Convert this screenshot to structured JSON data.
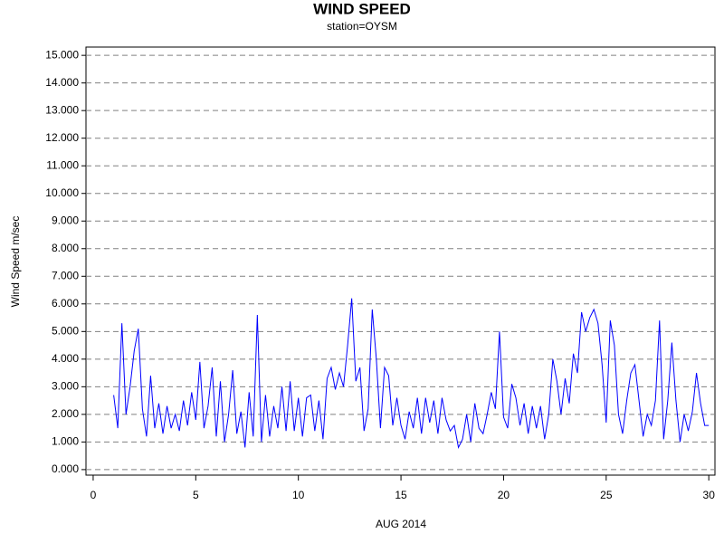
{
  "chart_data": {
    "type": "line",
    "title": "WIND SPEED",
    "subtitle": "station=OYSM",
    "x_label": "AUG 2014",
    "y_label": "Wind Speed m/sec",
    "xlim": [
      -0.35,
      30.3
    ],
    "ylim": [
      -0.2,
      15.3
    ],
    "xticks": [
      0,
      5,
      10,
      15,
      20,
      25,
      30
    ],
    "yticks": [
      {
        "value": 0,
        "label": "0.000"
      },
      {
        "value": 1,
        "label": "1.000"
      },
      {
        "value": 2,
        "label": "2.000"
      },
      {
        "value": 3,
        "label": "3.000"
      },
      {
        "value": 4,
        "label": "4.000"
      },
      {
        "value": 5,
        "label": "5.000"
      },
      {
        "value": 6,
        "label": "6.000"
      },
      {
        "value": 7,
        "label": "7.000"
      },
      {
        "value": 8,
        "label": "8.000"
      },
      {
        "value": 9,
        "label": "9.000"
      },
      {
        "value": 10,
        "label": "10.000"
      },
      {
        "value": 11,
        "label": "11.000"
      },
      {
        "value": 12,
        "label": "12.000"
      },
      {
        "value": 13,
        "label": "13.000"
      },
      {
        "value": 14,
        "label": "14.000"
      },
      {
        "value": 15,
        "label": "15.000"
      }
    ],
    "grid": true,
    "x": [
      1,
      1.2,
      1.4,
      1.6,
      1.8,
      2,
      2.2,
      2.4,
      2.6,
      2.8,
      3,
      3.2,
      3.4,
      3.6,
      3.8,
      4,
      4.2,
      4.4,
      4.6,
      4.8,
      5,
      5.2,
      5.4,
      5.6,
      5.8,
      6,
      6.2,
      6.4,
      6.6,
      6.8,
      7,
      7.2,
      7.4,
      7.6,
      7.8,
      8,
      8.2,
      8.4,
      8.6,
      8.8,
      9,
      9.2,
      9.4,
      9.6,
      9.8,
      10,
      10.2,
      10.4,
      10.6,
      10.8,
      11,
      11.2,
      11.4,
      11.6,
      11.8,
      12,
      12.2,
      12.4,
      12.6,
      12.8,
      13,
      13.2,
      13.4,
      13.6,
      13.8,
      14,
      14.2,
      14.4,
      14.6,
      14.8,
      15,
      15.2,
      15.4,
      15.6,
      15.8,
      16,
      16.2,
      16.4,
      16.6,
      16.8,
      17,
      17.2,
      17.4,
      17.6,
      17.8,
      18,
      18.2,
      18.4,
      18.6,
      18.8,
      19,
      19.2,
      19.4,
      19.6,
      19.8,
      20,
      20.2,
      20.4,
      20.6,
      20.8,
      21,
      21.2,
      21.4,
      21.6,
      21.8,
      22,
      22.2,
      22.4,
      22.6,
      22.8,
      23,
      23.2,
      23.4,
      23.6,
      23.8,
      24,
      24.2,
      24.4,
      24.6,
      24.8,
      25,
      25.2,
      25.4,
      25.6,
      25.8,
      26,
      26.2,
      26.4,
      26.6,
      26.8,
      27,
      27.2,
      27.4,
      27.6,
      27.8,
      28,
      28.2,
      28.4,
      28.6,
      28.8,
      29,
      29.2,
      29.4,
      29.6,
      29.8,
      30
    ],
    "series": [
      {
        "name": "Wind Speed",
        "color": "#0000ff",
        "values": [
          2.7,
          1.5,
          5.3,
          2.0,
          3.0,
          4.3,
          5.1,
          2.2,
          1.2,
          3.4,
          1.5,
          2.4,
          1.3,
          2.3,
          1.5,
          2.0,
          1.4,
          2.5,
          1.6,
          2.8,
          1.8,
          3.9,
          1.5,
          2.3,
          3.7,
          1.2,
          3.2,
          1.0,
          2.0,
          3.6,
          1.3,
          2.1,
          0.8,
          2.8,
          1.2,
          5.6,
          1.0,
          2.7,
          1.2,
          2.3,
          1.5,
          3.0,
          1.4,
          3.2,
          1.4,
          2.6,
          1.2,
          2.6,
          2.7,
          1.4,
          2.5,
          1.1,
          3.3,
          3.7,
          2.9,
          3.5,
          3.0,
          4.5,
          6.2,
          3.2,
          3.7,
          1.4,
          2.2,
          5.8,
          4.0,
          1.5,
          3.7,
          3.4,
          1.6,
          2.6,
          1.6,
          1.1,
          2.1,
          1.5,
          2.6,
          1.3,
          2.6,
          1.7,
          2.5,
          1.3,
          2.6,
          1.8,
          1.4,
          1.6,
          0.8,
          1.1,
          2.0,
          1.0,
          2.4,
          1.5,
          1.3,
          2.0,
          2.8,
          2.2,
          5.0,
          1.9,
          1.5,
          3.1,
          2.6,
          1.6,
          2.4,
          1.3,
          2.3,
          1.5,
          2.3,
          1.1,
          2.0,
          4.0,
          3.2,
          2.0,
          3.3,
          2.4,
          4.2,
          3.5,
          5.7,
          5.0,
          5.5,
          5.8,
          5.3,
          3.8,
          1.7,
          5.4,
          4.5,
          2.0,
          1.3,
          2.5,
          3.5,
          3.8,
          2.5,
          1.2,
          2.0,
          1.6,
          2.5,
          5.4,
          1.1,
          2.5,
          4.6,
          2.5,
          1.0,
          2.0,
          1.4,
          2.1,
          3.5,
          2.4,
          1.6,
          1.6
        ]
      }
    ]
  }
}
